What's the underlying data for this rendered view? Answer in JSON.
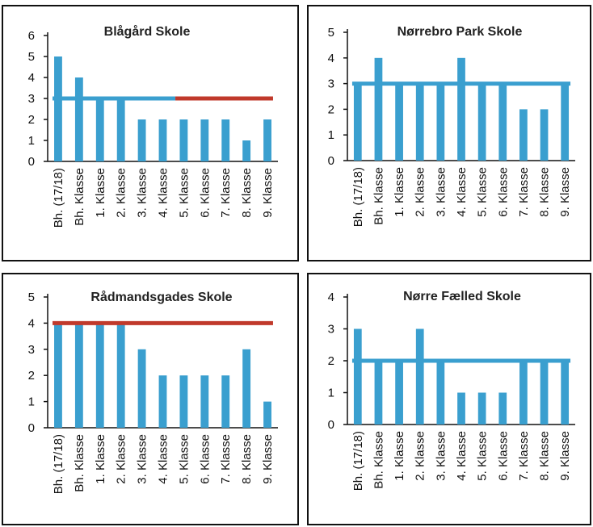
{
  "colors": {
    "bar": "#3a9fcf",
    "line_blue": "#3a9fcf",
    "line_red": "#c0392b"
  },
  "chart_data": [
    {
      "type": "bar",
      "title": "Blågård Skole",
      "categories": [
        "Bh. (17/18)",
        "Bh. Klasse",
        "1. Klasse",
        "2. Klasse",
        "3. Klasse",
        "4. Klasse",
        "5. Klasse",
        "6. Klasse",
        "7. Klasse",
        "8. Klasse",
        "9. Klasse"
      ],
      "values": [
        5,
        4,
        3,
        3,
        2,
        2,
        2,
        2,
        2,
        1,
        2
      ],
      "yticks": [
        "0",
        "1",
        "2",
        "3",
        "4",
        "5",
        "6"
      ],
      "ylim": [
        0,
        6
      ],
      "reference_line": {
        "value": 3,
        "from_index": 0,
        "to_index": 10,
        "color": "blue_to_red"
      }
    },
    {
      "type": "bar",
      "title": "Nørrebro Park Skole",
      "categories": [
        "Bh. (17/18)",
        "Bh. Klasse",
        "1. Klasse",
        "2. Klasse",
        "3. Klasse",
        "4. Klasse",
        "5. Klasse",
        "6. Klasse",
        "7. Klasse",
        "8. Klasse",
        "9. Klasse"
      ],
      "values": [
        3,
        4,
        3,
        3,
        3,
        4,
        3,
        3,
        2,
        2,
        3
      ],
      "yticks": [
        "0",
        "1",
        "2",
        "3",
        "4",
        "5"
      ],
      "ylim": [
        0,
        5
      ],
      "reference_line": {
        "value": 3,
        "from_index": 0,
        "to_index": 10,
        "color": "blue"
      }
    },
    {
      "type": "bar",
      "title": "Rådmandsgades Skole",
      "categories": [
        "Bh. (17/18)",
        "Bh. Klasse",
        "1. Klasse",
        "2. Klasse",
        "3. Klasse",
        "4. Klasse",
        "5. Klasse",
        "6. Klasse",
        "7. Klasse",
        "8. Klasse",
        "9. Klasse"
      ],
      "values": [
        4,
        4,
        4,
        4,
        3,
        2,
        2,
        2,
        2,
        3,
        1
      ],
      "yticks": [
        "0",
        "1",
        "2",
        "3",
        "4",
        "5"
      ],
      "ylim": [
        0,
        5
      ],
      "reference_line": {
        "value": 4,
        "from_index": 0,
        "to_index": 10,
        "color": "red"
      }
    },
    {
      "type": "bar",
      "title": "Nørre Fælled Skole",
      "categories": [
        "Bh. (17/18)",
        "Bh. Klasse",
        "1. Klasse",
        "2. Klasse",
        "3. Klasse",
        "4. Klasse",
        "5. Klasse",
        "6. Klasse",
        "7. Klasse",
        "8. Klasse",
        "9. Klasse"
      ],
      "values": [
        3,
        2,
        2,
        3,
        2,
        1,
        1,
        1,
        2,
        2,
        2
      ],
      "yticks": [
        "0",
        "1",
        "2",
        "3",
        "4"
      ],
      "ylim": [
        0,
        4
      ],
      "reference_line": {
        "value": 2,
        "from_index": 0,
        "to_index": 10,
        "color": "blue"
      }
    }
  ]
}
